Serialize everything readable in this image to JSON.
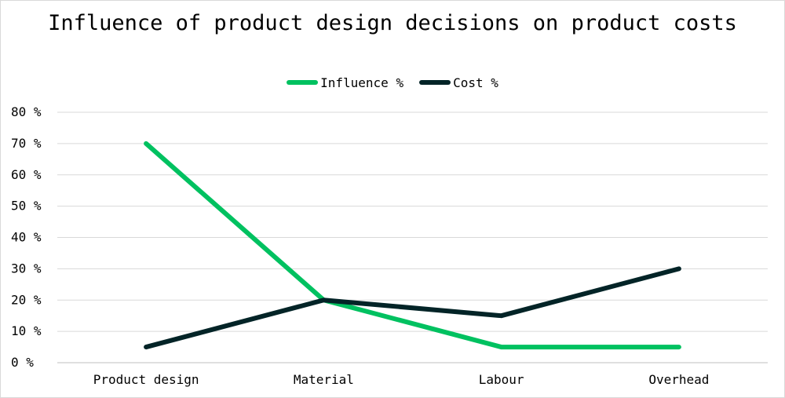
{
  "chart_data": {
    "type": "line",
    "title": "Influence of product design decisions on product costs",
    "categories": [
      "Product design",
      "Material",
      "Labour",
      "Overhead"
    ],
    "series": [
      {
        "name": "Influence %",
        "color": "#00c160",
        "values": [
          70,
          20,
          5,
          5
        ]
      },
      {
        "name": "Cost %",
        "color": "#032427",
        "values": [
          5,
          20,
          15,
          30
        ]
      }
    ],
    "ylim": [
      0,
      80
    ],
    "yticks": [
      0,
      10,
      20,
      30,
      40,
      50,
      60,
      70,
      80
    ],
    "ytick_suffix": " %",
    "grid": true,
    "legend_position": "top-center"
  }
}
